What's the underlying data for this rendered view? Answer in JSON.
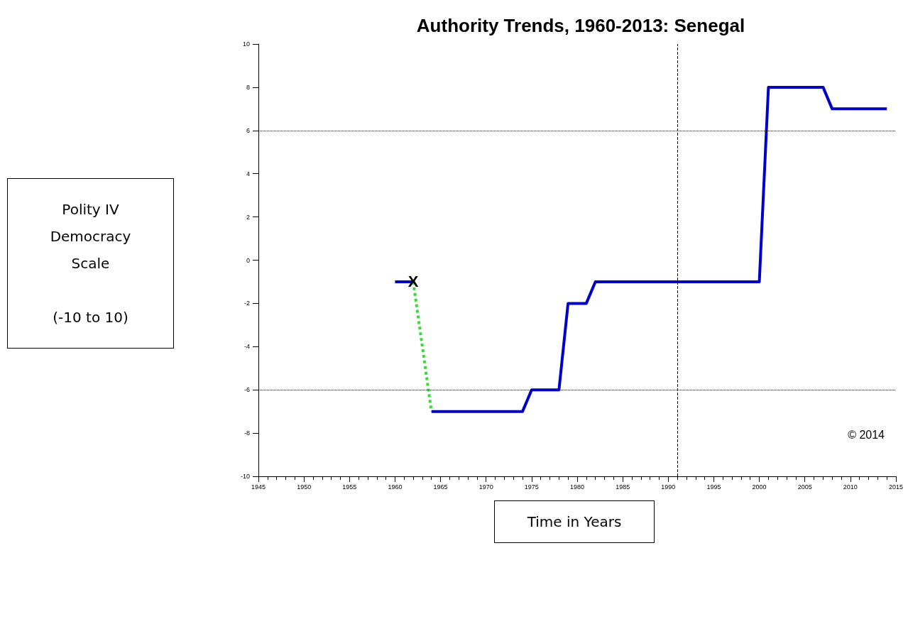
{
  "chart_data": {
    "type": "line",
    "title": "Authority Trends, 1960-2013: Senegal",
    "xlabel": "Time in Years",
    "ylabel": "Polity IV\nDemocracy\nScale\n\n(-10 to 10)",
    "series": [
      {
        "color": "#0000cc",
        "x": [
          1960,
          1962,
          1963,
          1964,
          1974,
          1975,
          1978,
          1979,
          1981,
          1982,
          2000,
          2001,
          2007,
          2008,
          2014
        ],
        "values": [
          -1,
          -1,
          null,
          -7,
          -7,
          -6,
          -6,
          -2,
          -2,
          -1,
          -1,
          8,
          8,
          7,
          7
        ]
      },
      {
        "color": "#33dd33",
        "line_style": "dotted",
        "x": [
          1962,
          1964
        ],
        "values": [
          -1,
          -7
        ]
      }
    ],
    "xlim": [
      1945,
      2015
    ],
    "xticks": [
      1945,
      1950,
      1955,
      1960,
      1965,
      1970,
      1975,
      1980,
      1985,
      1990,
      1995,
      2000,
      2005,
      2010,
      2015
    ],
    "ylim": [
      -10,
      10
    ],
    "yticks": [
      -10,
      -8,
      -6,
      -4,
      -2,
      0,
      2,
      4,
      6,
      8,
      10
    ],
    "ref_lines": [
      {
        "axis": "y",
        "value": 6,
        "line_style": "dotted",
        "color": "#000000"
      },
      {
        "axis": "y",
        "value": -6,
        "line_style": "dotted",
        "color": "#000000"
      },
      {
        "axis": "x",
        "value": 1991,
        "line_style": "dashed",
        "color": "#000000"
      }
    ],
    "annotations": [
      {
        "text": "X",
        "x": 1962,
        "y": -1
      },
      "© 2014"
    ],
    "marker": "none",
    "line_style": "solid"
  }
}
